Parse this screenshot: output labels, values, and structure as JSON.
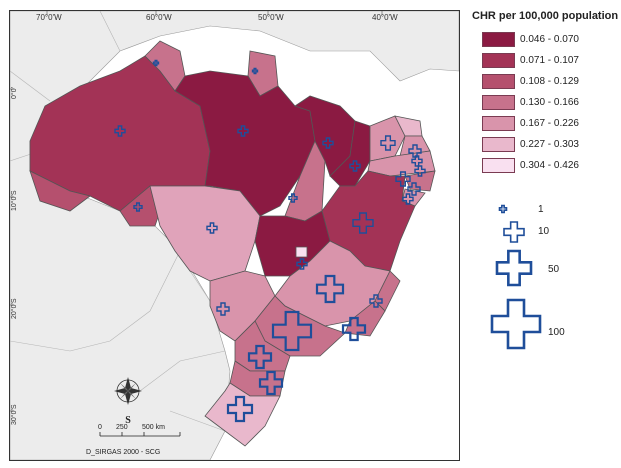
{
  "map": {
    "lon_labels": [
      "70°0'W",
      "60°0'W",
      "50°0'W",
      "40°0'W"
    ],
    "lat_labels": [
      "0°0'",
      "10°0'S",
      "20°0'S",
      "30°0'S"
    ],
    "compass_letter": "S",
    "scale_labels": [
      "0",
      "250",
      "500 km"
    ],
    "credit": "D_SIRGAS 2000  -  SCG"
  },
  "legend": {
    "title": "CHR per 100,000 population",
    "classes": [
      {
        "label": "0.046 - 0.070",
        "color": "#8b1a42"
      },
      {
        "label": "0.071 - 0.107",
        "color": "#a33356"
      },
      {
        "label": "0.108 - 0.129",
        "color": "#b5506e"
      },
      {
        "label": "0.130 - 0.166",
        "color": "#c7728c"
      },
      {
        "label": "0.167 - 0.226",
        "color": "#d994ab"
      },
      {
        "label": "0.227 - 0.303",
        "color": "#e9b8cc"
      },
      {
        "label": "0.304 - 0.426",
        "color": "#f9e0f0"
      }
    ]
  },
  "size_legend": {
    "items": [
      {
        "label": "1",
        "value": 1
      },
      {
        "label": "10",
        "value": 10
      },
      {
        "label": "50",
        "value": 50
      },
      {
        "label": "100",
        "value": 100
      }
    ],
    "symbol_color": "#1f4e9a"
  },
  "colors": {
    "land_outside": "#ececec",
    "ocean": "#ffffff",
    "border": "#555555"
  }
}
